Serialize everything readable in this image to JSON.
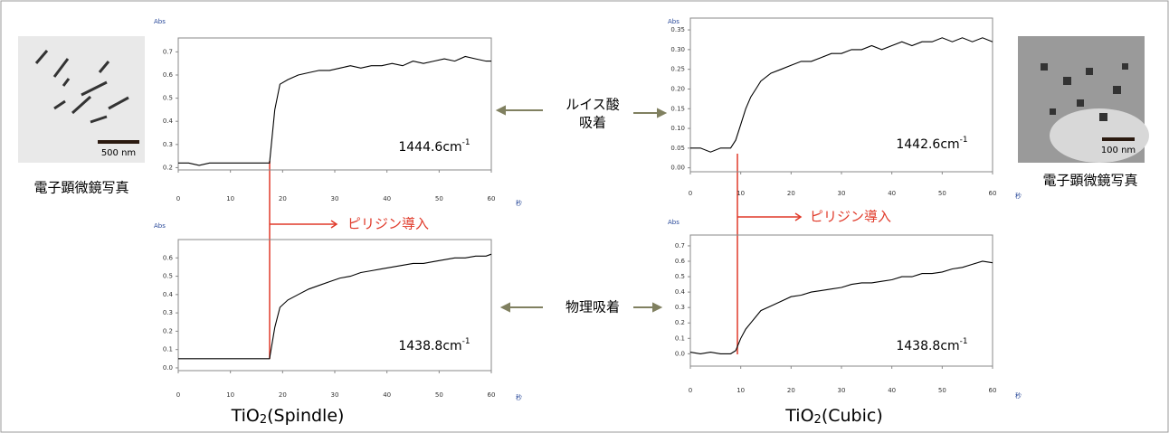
{
  "chart_data": [
    {
      "type": "line",
      "y_label": "Abs",
      "x_label": "秒",
      "peak_label": {
        "text": "1444.6cm",
        "sup": "-1"
      },
      "xlim": [
        0,
        60
      ],
      "xticks": [
        0,
        10,
        20,
        30,
        40,
        50,
        60
      ],
      "ylim": [
        0.19,
        0.76
      ],
      "yticks": [
        0.2,
        0.3,
        0.4,
        0.5,
        0.6,
        0.7
      ],
      "series": [
        {
          "color": "#000000",
          "x": [
            0,
            2,
            4,
            6,
            8,
            10,
            12,
            14,
            16,
            17.5,
            18.5,
            19.5,
            21,
            23,
            25,
            27,
            29,
            31,
            33,
            35,
            37,
            39,
            41,
            43,
            45,
            47,
            49,
            51,
            53,
            55,
            57,
            59,
            60
          ],
          "values": [
            0.22,
            0.22,
            0.21,
            0.22,
            0.22,
            0.22,
            0.22,
            0.22,
            0.22,
            0.22,
            0.45,
            0.56,
            0.58,
            0.6,
            0.61,
            0.62,
            0.62,
            0.63,
            0.64,
            0.63,
            0.64,
            0.64,
            0.65,
            0.64,
            0.66,
            0.65,
            0.66,
            0.67,
            0.66,
            0.68,
            0.67,
            0.66,
            0.66
          ]
        }
      ]
    },
    {
      "type": "line",
      "y_label": "Abs",
      "x_label": "秒",
      "peak_label": {
        "text": "1438.8cm",
        "sup": "-1"
      },
      "xlim": [
        0,
        60
      ],
      "xticks": [
        0,
        10,
        20,
        30,
        40,
        50,
        60
      ],
      "ylim": [
        -0.015,
        0.7
      ],
      "yticks": [
        {
          "value": 0,
          "label": "0.0"
        },
        0.1,
        0.2,
        0.3,
        0.4,
        0.5,
        0.6
      ],
      "series": [
        {
          "color": "#000000",
          "x": [
            0,
            2,
            4,
            6,
            8,
            10,
            12,
            14,
            16,
            17.5,
            18.5,
            19.5,
            21,
            23,
            25,
            27,
            29,
            31,
            33,
            35,
            37,
            39,
            41,
            43,
            45,
            47,
            49,
            51,
            53,
            55,
            57,
            59,
            60
          ],
          "values": [
            0.05,
            0.05,
            0.05,
            0.05,
            0.05,
            0.05,
            0.05,
            0.05,
            0.05,
            0.05,
            0.22,
            0.33,
            0.37,
            0.4,
            0.43,
            0.45,
            0.47,
            0.49,
            0.5,
            0.52,
            0.53,
            0.54,
            0.55,
            0.56,
            0.57,
            0.57,
            0.58,
            0.59,
            0.6,
            0.6,
            0.61,
            0.61,
            0.62
          ]
        }
      ]
    },
    {
      "type": "line",
      "y_label": "Abs",
      "x_label": "秒",
      "peak_label": {
        "text": "1442.6cm",
        "sup": "-1"
      },
      "xlim": [
        0,
        60
      ],
      "xticks": [
        0,
        10,
        20,
        30,
        40,
        50,
        60
      ],
      "ylim": [
        -0.01,
        0.38
      ],
      "yticks": [
        {
          "value": 0,
          "label": "0.00"
        },
        0.05,
        {
          "value": 0.1,
          "label": "0.10"
        },
        0.15,
        {
          "value": 0.2,
          "label": "0.20"
        },
        0.25,
        {
          "value": 0.3,
          "label": "0.30"
        },
        0.35
      ],
      "series": [
        {
          "color": "#000000",
          "x": [
            0,
            2,
            4,
            6,
            8,
            9,
            10,
            11,
            12,
            13,
            14,
            16,
            18,
            20,
            22,
            24,
            26,
            28,
            30,
            32,
            34,
            36,
            38,
            40,
            42,
            44,
            46,
            48,
            50,
            52,
            54,
            56,
            58,
            60
          ],
          "values": [
            0.05,
            0.05,
            0.04,
            0.05,
            0.05,
            0.07,
            0.11,
            0.15,
            0.18,
            0.2,
            0.22,
            0.24,
            0.25,
            0.26,
            0.27,
            0.27,
            0.28,
            0.29,
            0.29,
            0.3,
            0.3,
            0.31,
            0.3,
            0.31,
            0.32,
            0.31,
            0.32,
            0.32,
            0.33,
            0.32,
            0.33,
            0.32,
            0.33,
            0.32
          ]
        }
      ]
    },
    {
      "type": "line",
      "y_label": "Abs",
      "x_label": "秒",
      "peak_label": {
        "text": "1438.8cm",
        "sup": "-1"
      },
      "xlim": [
        0,
        60
      ],
      "xticks": [
        0,
        10,
        20,
        30,
        40,
        50,
        60
      ],
      "ylim": [
        -0.08,
        0.77
      ],
      "yticks": [
        {
          "value": 0,
          "label": "0.0"
        },
        0.1,
        0.2,
        0.3,
        0.4,
        0.5,
        0.6,
        0.7
      ],
      "series": [
        {
          "color": "#000000",
          "x": [
            0,
            2,
            4,
            6,
            8,
            9,
            10,
            11,
            12,
            13,
            14,
            16,
            18,
            20,
            22,
            24,
            26,
            28,
            30,
            32,
            34,
            36,
            38,
            40,
            42,
            44,
            46,
            48,
            50,
            52,
            54,
            56,
            58,
            60
          ],
          "values": [
            0.01,
            0,
            0.01,
            0,
            0,
            0.02,
            0.1,
            0.16,
            0.2,
            0.24,
            0.28,
            0.31,
            0.34,
            0.37,
            0.38,
            0.4,
            0.41,
            0.42,
            0.43,
            0.45,
            0.46,
            0.46,
            0.47,
            0.48,
            0.5,
            0.5,
            0.52,
            0.52,
            0.53,
            0.55,
            0.56,
            0.58,
            0.6,
            0.59
          ]
        }
      ]
    }
  ],
  "labels": {
    "lewis": [
      "ルイス酸",
      "吸着"
    ],
    "physical": "物理吸着",
    "pyridine": [
      "ピリジン導入",
      "ピリジン導入"
    ],
    "samples": [
      [
        "TiO",
        "2",
        "(Spindle)"
      ],
      [
        "TiO",
        "2",
        "(Cubic)"
      ]
    ],
    "micrograph": [
      "電子顕微鏡写真",
      "電子顕微鏡写真"
    ],
    "scale_bars": [
      "500 nm",
      "100 nm"
    ]
  }
}
